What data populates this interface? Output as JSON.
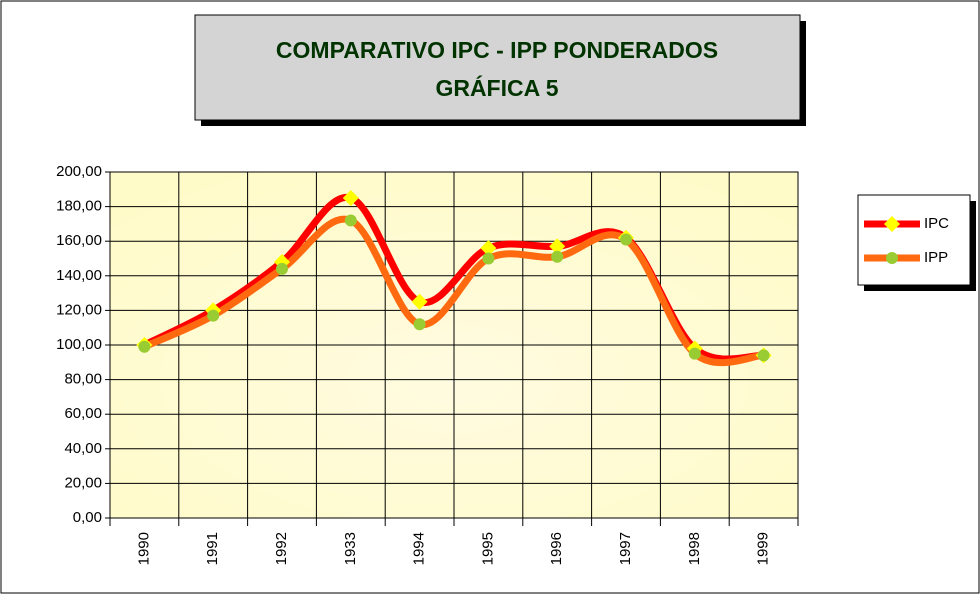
{
  "chart_data": {
    "type": "line",
    "title": "COMPARATIVO IPC - IPP PONDERADOS",
    "subtitle": "GRÁFICA 5",
    "categories": [
      "1990",
      "1991",
      "1992",
      "1933",
      "1994",
      "1995",
      "1996",
      "1997",
      "1998",
      "1999"
    ],
    "series": [
      {
        "name": "IPC",
        "color": "#ff0000",
        "marker_color": "#ffff00",
        "marker": "diamond",
        "values": [
          100,
          120,
          148,
          185,
          125,
          156,
          157,
          162,
          98,
          94
        ]
      },
      {
        "name": "IPP",
        "color": "#ff6a10",
        "marker_color": "#99cc33",
        "marker": "circle",
        "values": [
          99,
          117,
          144,
          172,
          112,
          150,
          151,
          161,
          95,
          94
        ]
      }
    ],
    "ylim": [
      0,
      200
    ],
    "yticks": [
      {
        "value": 0,
        "label": "0,00"
      },
      {
        "value": 20,
        "label": "20,00"
      },
      {
        "value": 40,
        "label": "40,00"
      },
      {
        "value": 60,
        "label": "60,00"
      },
      {
        "value": 80,
        "label": "80,00"
      },
      {
        "value": 100,
        "label": "100,00"
      },
      {
        "value": 120,
        "label": "120,00"
      },
      {
        "value": 140,
        "label": "140,00"
      },
      {
        "value": 160,
        "label": "160,00"
      },
      {
        "value": 180,
        "label": "180,00"
      },
      {
        "value": 200,
        "label": "200,00"
      }
    ],
    "grid": true,
    "smooth": true,
    "legend": "right"
  }
}
